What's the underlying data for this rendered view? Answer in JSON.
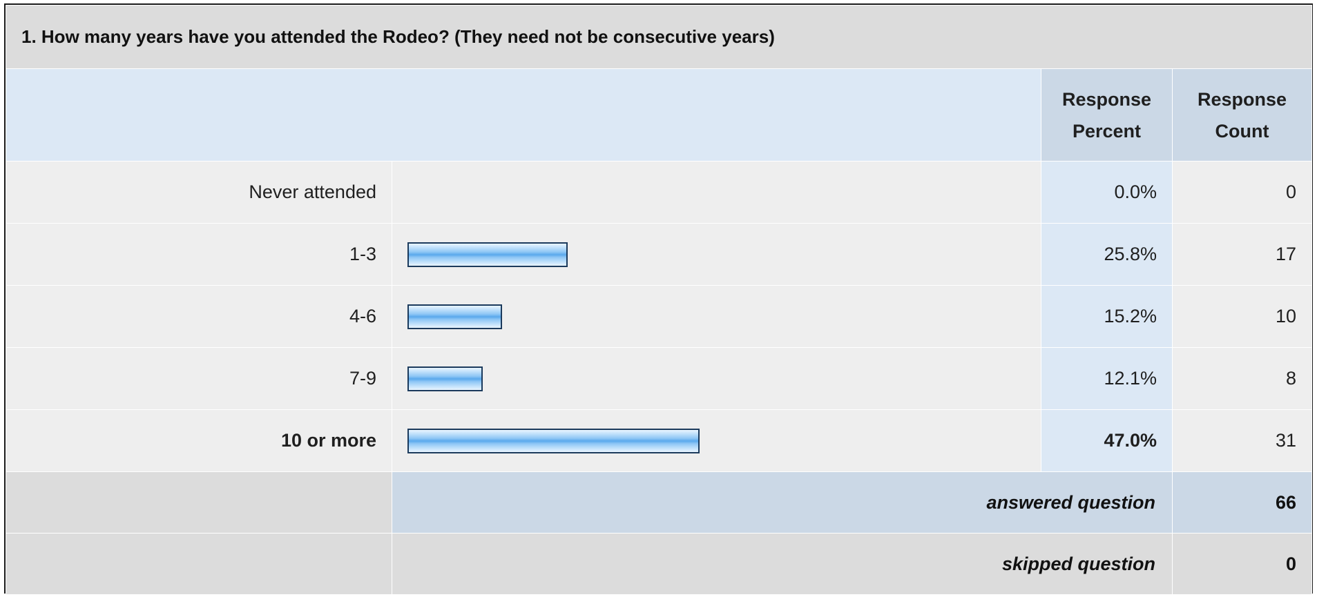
{
  "question": {
    "title": "1. How many years have you attended the Rodeo? (They need not be consecutive years)"
  },
  "columns": {
    "percent_line1": "Response",
    "percent_line2": "Percent",
    "count_line1": "Response",
    "count_line2": "Count"
  },
  "chart_data": {
    "type": "bar",
    "orientation": "horizontal",
    "categories": [
      "Never attended",
      "1-3",
      "4-6",
      "7-9",
      "10 or more"
    ],
    "values": [
      0.0,
      25.8,
      15.2,
      12.1,
      47.0
    ],
    "counts": [
      0,
      17,
      10,
      8,
      31
    ],
    "percent_labels": [
      "0.0%",
      "25.8%",
      "15.2%",
      "12.1%",
      "47.0%"
    ],
    "count_labels": [
      "0",
      "17",
      "10",
      "8",
      "31"
    ],
    "highlight_index": 4,
    "xlim": [
      0,
      100
    ],
    "title": "1. How many years have you attended the Rodeo? (They need not be consecutive years)",
    "xlabel": "",
    "ylabel": ""
  },
  "summary": {
    "answered_label": "answered question",
    "answered_value": "66",
    "skipped_label": "skipped question",
    "skipped_value": "0"
  },
  "colors": {
    "bar_border": "#1b3a5c",
    "bar_center": "#5aa8ec",
    "header_blue": "#cbd8e6",
    "light_blue": "#dce8f5",
    "row_gray": "#eeeeee"
  }
}
